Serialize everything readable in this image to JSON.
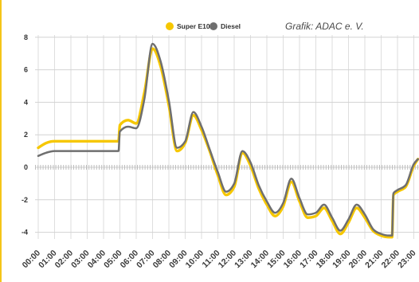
{
  "chart_data": {
    "type": "line",
    "title": "",
    "xlabel": "",
    "ylabel": "",
    "x": [
      "00:00",
      "00:30",
      "01:00",
      "01:30",
      "02:00",
      "02:30",
      "03:00",
      "03:30",
      "04:00",
      "04:30",
      "04:55",
      "05:00",
      "05:30",
      "06:00",
      "06:30",
      "07:00",
      "07:30",
      "08:00",
      "08:30",
      "09:00",
      "09:30",
      "10:00",
      "10:30",
      "11:00",
      "11:30",
      "12:00",
      "12:30",
      "13:00",
      "13:30",
      "14:00",
      "14:30",
      "15:00",
      "15:30",
      "16:00",
      "16:30",
      "17:00",
      "17:30",
      "18:00",
      "18:30",
      "19:00",
      "19:30",
      "20:00",
      "20:30",
      "21:00",
      "21:30",
      "21:40",
      "21:45",
      "22:00",
      "22:30",
      "23:00",
      "23:15"
    ],
    "series": [
      {
        "name": "Super E10",
        "color": "#f6c700",
        "values": [
          1.2,
          1.5,
          1.6,
          1.6,
          1.6,
          1.6,
          1.6,
          1.6,
          1.6,
          1.6,
          1.6,
          2.6,
          2.9,
          2.7,
          4.6,
          7.3,
          6.2,
          3.8,
          1.0,
          1.5,
          3.2,
          2.3,
          1.0,
          -0.5,
          -1.7,
          -1.2,
          0.9,
          0.1,
          -1.3,
          -2.3,
          -3.0,
          -2.4,
          -0.9,
          -2.1,
          -3.1,
          -3.0,
          -2.5,
          -3.3,
          -4.1,
          -3.4,
          -2.5,
          -3.1,
          -3.9,
          -4.2,
          -4.3,
          -4.3,
          -1.7,
          -1.5,
          -1.2,
          0.1,
          0.5
        ]
      },
      {
        "name": "Diesel",
        "color": "#6f6f6f",
        "values": [
          0.7,
          0.9,
          1.0,
          1.0,
          1.0,
          1.0,
          1.0,
          1.0,
          1.0,
          1.0,
          1.0,
          2.2,
          2.5,
          2.4,
          4.2,
          7.6,
          6.5,
          4.1,
          1.2,
          1.6,
          3.4,
          2.5,
          1.1,
          -0.3,
          -1.5,
          -1.0,
          1.0,
          0.3,
          -1.1,
          -2.1,
          -2.8,
          -2.2,
          -0.7,
          -1.9,
          -2.9,
          -2.8,
          -2.3,
          -3.1,
          -3.9,
          -3.2,
          -2.3,
          -2.9,
          -3.8,
          -4.1,
          -4.2,
          -4.2,
          -1.6,
          -1.4,
          -1.1,
          0.2,
          0.5
        ]
      }
    ],
    "xticks": [
      "00:00",
      "01:00",
      "02:00",
      "03:00",
      "04:00",
      "05:00",
      "06:00",
      "07:00",
      "08:00",
      "09:00",
      "10:00",
      "11:00",
      "12:00",
      "13:00",
      "14:00",
      "15:00",
      "16:00",
      "17:00",
      "18:00",
      "19:00",
      "20:00",
      "21:00",
      "22:00",
      "23:00"
    ],
    "yticks": [
      8,
      6,
      4,
      2,
      0,
      -2,
      -4
    ],
    "ylim": [
      -4.6,
      8.4
    ],
    "xlim": [
      "00:00",
      "23:15"
    ],
    "grid": true,
    "legend": "top",
    "credit": "Grafik: ADAC e. V."
  },
  "colors": {
    "accent": "#f5c518",
    "grid": "#dedede",
    "gridline_h": "#d2d2d2",
    "zero_line": "#bdbdbd"
  }
}
